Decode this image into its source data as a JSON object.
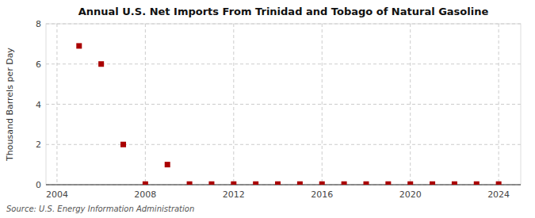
{
  "chart_data": {
    "type": "scatter",
    "title": "Annual U.S. Net Imports From Trinidad and Tobago of Natural Gasoline",
    "y_label": "Thousand Barrels per Day",
    "annotations": [
      "Source: U.S. Energy Information Administration"
    ],
    "x": [
      2005,
      2006,
      2007,
      2008,
      2009,
      2010,
      2011,
      2012,
      2013,
      2014,
      2015,
      2016,
      2017,
      2018,
      2019,
      2020,
      2021,
      2022,
      2023,
      2024
    ],
    "values": [
      6.9,
      6.0,
      2.0,
      0.03,
      1.0,
      0.03,
      0.03,
      0.03,
      0.03,
      0.03,
      0.03,
      0.03,
      0.03,
      0.03,
      0.03,
      0.03,
      0.03,
      0.03,
      0.03,
      0.03
    ],
    "color": "#aa0000",
    "marker": "square",
    "xlim": [
      2003.5,
      2025
    ],
    "ylim": [
      0,
      8
    ],
    "xticks": [
      2004,
      2008,
      2012,
      2016,
      2020,
      2024
    ],
    "yticks": [
      0,
      2,
      4,
      6,
      8
    ],
    "grid": true
  }
}
